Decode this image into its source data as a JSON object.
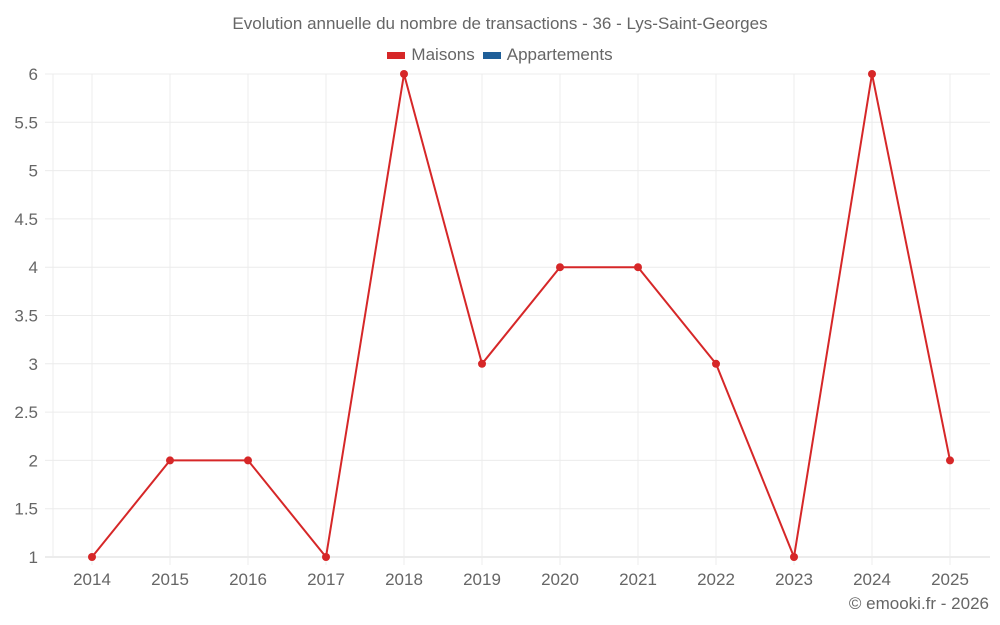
{
  "chart_data": {
    "type": "line",
    "title": "Evolution annuelle du nombre de transactions - 36 - Lys-Saint-Georges",
    "xlabel": "",
    "ylabel": "",
    "categories": [
      "2014",
      "2015",
      "2016",
      "2017",
      "2018",
      "2019",
      "2020",
      "2021",
      "2022",
      "2023",
      "2024",
      "2025"
    ],
    "series": [
      {
        "name": "Maisons",
        "color": "#d62728",
        "values": [
          1,
          2,
          2,
          1,
          6,
          3,
          4,
          4,
          3,
          1,
          6,
          2
        ]
      },
      {
        "name": "Appartements",
        "color": "#1f5f99",
        "values": []
      }
    ],
    "ylim": [
      1,
      6
    ],
    "yticks": [
      "1",
      "1.5",
      "2",
      "2.5",
      "3",
      "3.5",
      "4",
      "4.5",
      "5",
      "5.5",
      "6"
    ],
    "grid": true,
    "legend_position": "top"
  },
  "header": {
    "title": "Evolution annuelle du nombre de transactions - 36 - Lys-Saint-Georges"
  },
  "legend": {
    "items": [
      {
        "label": "Maisons",
        "color": "#d62728"
      },
      {
        "label": "Appartements",
        "color": "#1f5f99"
      }
    ]
  },
  "footer": {
    "credit": "© emooki.fr - 2026"
  }
}
